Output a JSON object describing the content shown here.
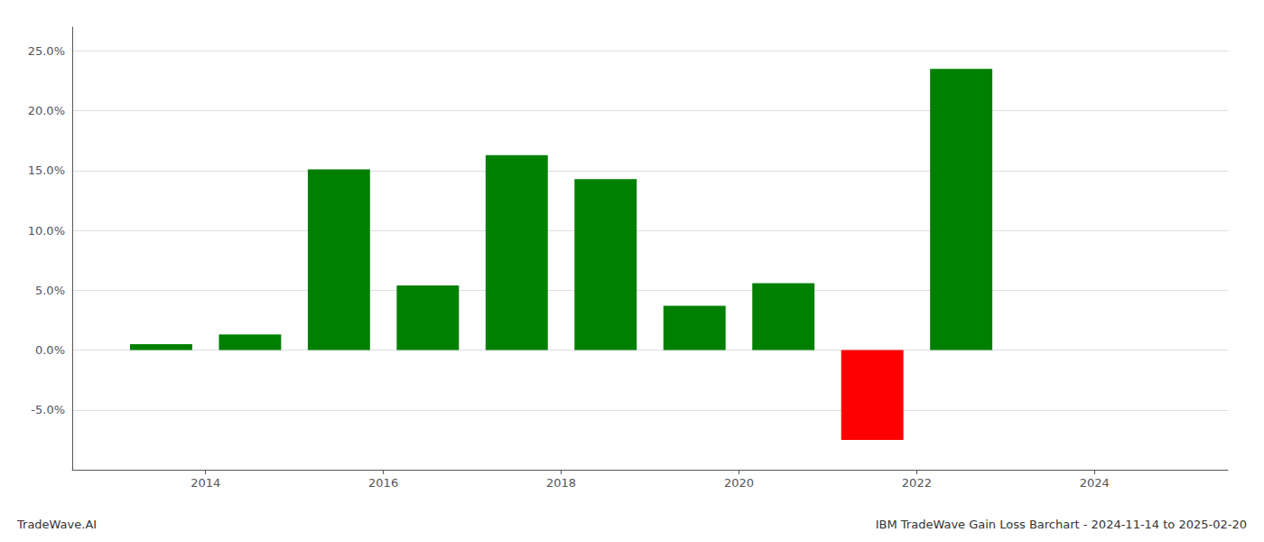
{
  "chart_data": {
    "type": "bar",
    "title": "IBM TradeWave Gain Loss Barchart - 2024-11-14 to 2025-02-20",
    "annotations": [
      "TradeWave.AI"
    ],
    "x": [
      2013.5,
      2014.5,
      2015.5,
      2016.5,
      2017.5,
      2018.5,
      2019.5,
      2020.5,
      2021.5,
      2022.5,
      2023.5
    ],
    "values": [
      0.005,
      0.013,
      0.151,
      0.054,
      0.163,
      0.143,
      0.037,
      0.056,
      -0.075,
      0.235,
      0.0
    ],
    "colors": [
      "#008000",
      "#008000",
      "#008000",
      "#008000",
      "#008000",
      "#008000",
      "#008000",
      "#008000",
      "#ff0000",
      "#008000",
      "#008000"
    ],
    "xlim": [
      2012.5,
      2025.5
    ],
    "xticks": [
      2014,
      2016,
      2018,
      2020,
      2022,
      2024
    ],
    "ylim": [
      -0.1,
      0.27
    ],
    "yticks": [
      {
        "value": -0.05,
        "label": "-5.0%"
      },
      {
        "value": 0.0,
        "label": "0.0%"
      },
      {
        "value": 0.05,
        "label": "5.0%"
      },
      {
        "value": 0.1,
        "label": "10.0%"
      },
      {
        "value": 0.15,
        "label": "15.0%"
      },
      {
        "value": 0.2,
        "label": "20.0%"
      },
      {
        "value": 0.25,
        "label": "25.0%"
      }
    ],
    "grid": true
  }
}
